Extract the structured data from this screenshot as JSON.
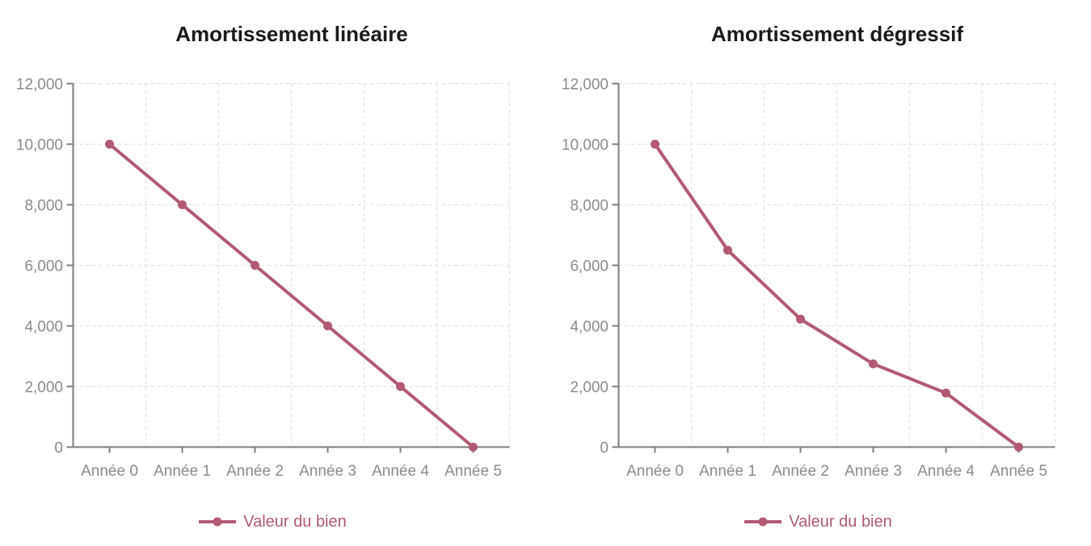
{
  "page": {
    "background": "#ffffff"
  },
  "colors": {
    "series": "#b25a72",
    "title_text": "#1a1a1a",
    "axis_line": "#7d7d7d",
    "tick_label": "#8b8b8b",
    "gridline": "#dcdcdc",
    "legend_text": "#b25a72"
  },
  "chart_data": [
    {
      "type": "line",
      "title": "Amortissement linéaire",
      "categories": [
        "Année 0",
        "Année 1",
        "Année 2",
        "Année 3",
        "Année 4",
        "Année 5"
      ],
      "series": [
        {
          "name": "Valeur du bien",
          "color": "#b25a72",
          "values": [
            10000,
            8000,
            6000,
            4000,
            2000,
            0
          ]
        }
      ],
      "ylim": [
        0,
        12000
      ],
      "y_ticks": [
        {
          "value": 0,
          "label": "0"
        },
        {
          "value": 2000,
          "label": "2,000"
        },
        {
          "value": 4000,
          "label": "4,000"
        },
        {
          "value": 6000,
          "label": "6,000"
        },
        {
          "value": 8000,
          "label": "8,000"
        },
        {
          "value": 10000,
          "label": "10,000"
        },
        {
          "value": 12000,
          "label": "12,000"
        }
      ],
      "grid": "dashed, horizontal and vertical",
      "legend_position": "bottom"
    },
    {
      "type": "line",
      "title": "Amortissement dégressif",
      "categories": [
        "Année 0",
        "Année 1",
        "Année 2",
        "Année 3",
        "Année 4",
        "Année 5"
      ],
      "series": [
        {
          "name": "Valeur du bien",
          "color": "#b25a72",
          "values": [
            10000,
            6500,
            4225,
            2746,
            1785,
            0
          ]
        }
      ],
      "ylim": [
        0,
        12000
      ],
      "y_ticks": [
        {
          "value": 0,
          "label": "0"
        },
        {
          "value": 2000,
          "label": "2,000"
        },
        {
          "value": 4000,
          "label": "4,000"
        },
        {
          "value": 6000,
          "label": "6,000"
        },
        {
          "value": 8000,
          "label": "8,000"
        },
        {
          "value": 10000,
          "label": "10,000"
        },
        {
          "value": 12000,
          "label": "12,000"
        }
      ],
      "grid": "dashed, horizontal and vertical",
      "legend_position": "bottom"
    }
  ]
}
